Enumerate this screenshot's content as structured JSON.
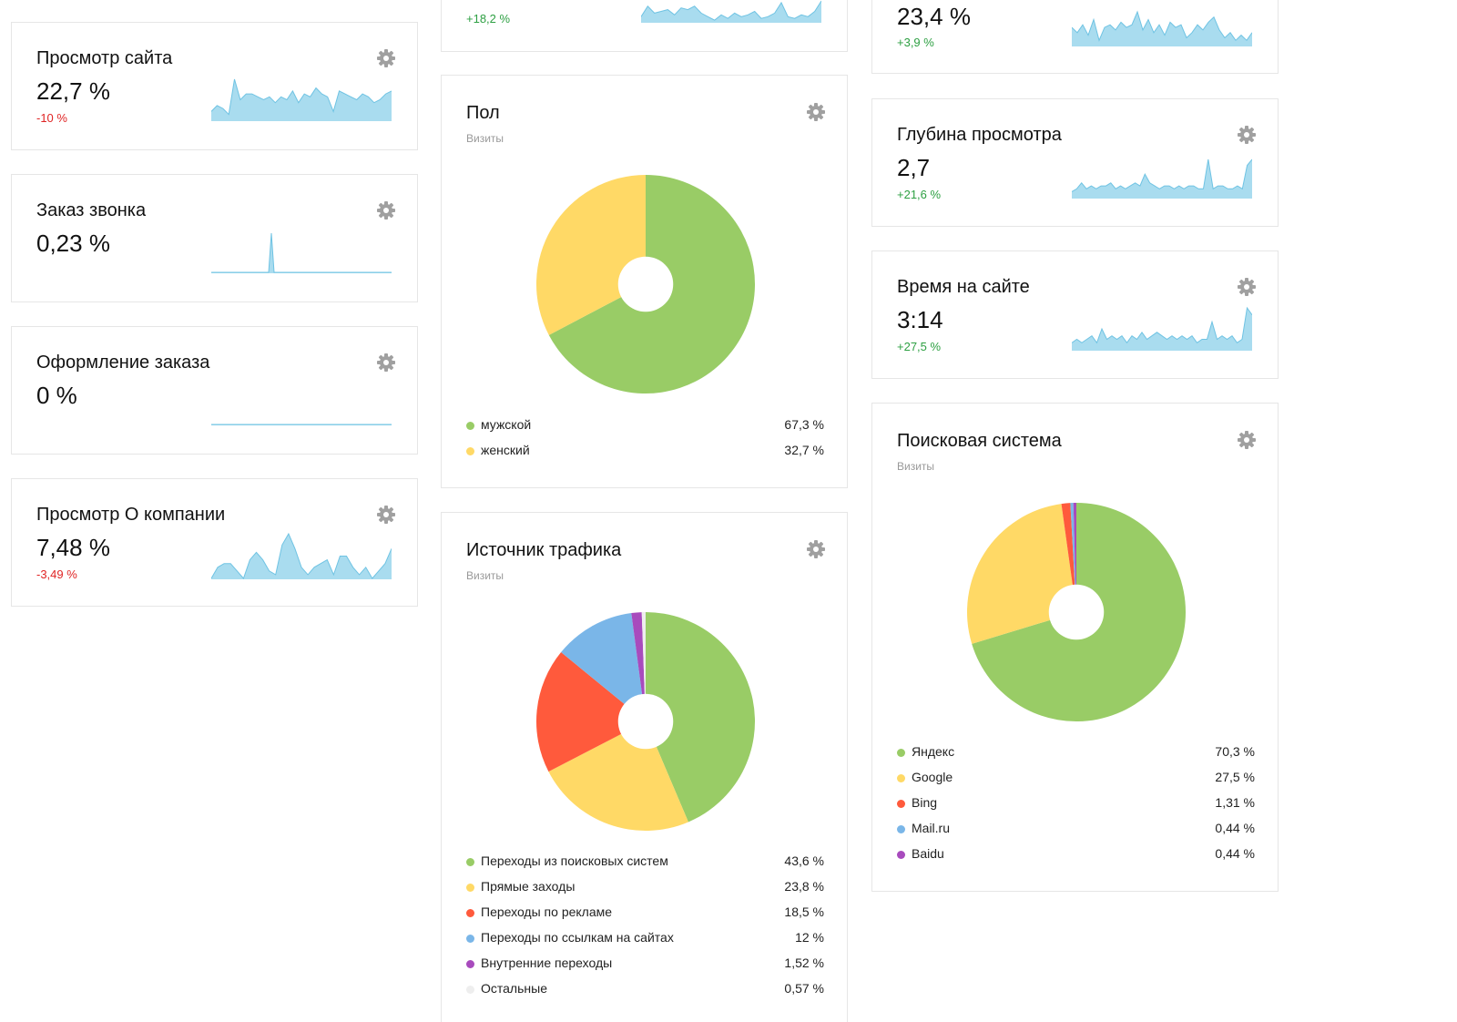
{
  "colors": {
    "spark_fill": "#a9dcef",
    "spark_line": "#6fc3e3",
    "positive": "#2ea043",
    "negative": "#e02424",
    "gear": "#a0a0a0",
    "green": "#99cc66",
    "yellow": "#ffd966",
    "red": "#ff5a3c",
    "blue": "#7ab6e8",
    "purple": "#a84bbd",
    "light": "#eeeeee"
  },
  "metrics": [
    {
      "id": "page-view",
      "title": "Просмотр сайта",
      "value": "22,7 %",
      "delta": "-10 %",
      "delta_sign": "neg",
      "spark": [
        3,
        5,
        4,
        2,
        14,
        7,
        9,
        9,
        8,
        7,
        8,
        6,
        8,
        7,
        10,
        6,
        9,
        8,
        11,
        9,
        8,
        3,
        10,
        9,
        8,
        7,
        9,
        8,
        6,
        7,
        9,
        10
      ]
    },
    {
      "id": "callback-order",
      "title": "Заказ звонка",
      "value": "0,23 %",
      "delta": "",
      "delta_sign": "",
      "spark": [
        0,
        0,
        0,
        0,
        0,
        0,
        0,
        0,
        0,
        0,
        0,
        0,
        0,
        0,
        0,
        0,
        0,
        0,
        0,
        0,
        0,
        0,
        14,
        0,
        0,
        0,
        0,
        0,
        0,
        0,
        0,
        0,
        0,
        0,
        0,
        0,
        0,
        0,
        0,
        0,
        0,
        0,
        0,
        0,
        0,
        0,
        0,
        0,
        0,
        0,
        0,
        0,
        0,
        0,
        0,
        0,
        0,
        0,
        0,
        0,
        0,
        0,
        0,
        0,
        0,
        0,
        0
      ]
    },
    {
      "id": "checkout",
      "title": "Оформление заказа",
      "value": "0 %",
      "delta": "",
      "delta_sign": "",
      "spark": [
        0,
        0,
        0,
        0,
        0,
        0,
        0,
        0,
        0,
        0,
        0,
        0,
        0,
        0,
        0,
        0,
        0,
        0,
        0,
        0
      ]
    },
    {
      "id": "about-view",
      "title": "Просмотр О компании",
      "value": "7,48 %",
      "delta": "-3,49 %",
      "delta_sign": "neg",
      "spark": [
        0,
        3,
        4,
        4,
        2,
        0,
        5,
        7,
        5,
        2,
        1,
        9,
        12,
        8,
        3,
        1,
        3,
        4,
        5,
        1,
        6,
        6,
        3,
        1,
        3,
        0,
        2,
        4,
        8
      ]
    },
    {
      "id": "top-center",
      "title": "",
      "value": "",
      "delta": "+18,2 %",
      "delta_sign": "pos",
      "spark": [
        3,
        9,
        5,
        6,
        7,
        4,
        8,
        7,
        9,
        5,
        3,
        1,
        4,
        2,
        5,
        3,
        4,
        6,
        2,
        3,
        5,
        11,
        3,
        2,
        4,
        3,
        6,
        12
      ]
    },
    {
      "id": "bounce",
      "title": "",
      "value": "23,4 %",
      "delta": "+3,9 %",
      "delta_sign": "pos",
      "spark": [
        7,
        5,
        8,
        4,
        10,
        2,
        7,
        8,
        6,
        9,
        7,
        8,
        13,
        6,
        10,
        5,
        8,
        4,
        9,
        7,
        8,
        3,
        5,
        8,
        6,
        9,
        11,
        6,
        3,
        5,
        2,
        4,
        2,
        5
      ]
    },
    {
      "id": "depth",
      "title": "Глубина просмотра",
      "value": "2,7",
      "delta": "+21,6 %",
      "delta_sign": "pos",
      "spark": [
        2,
        3,
        5,
        3,
        4,
        3,
        4,
        4,
        5,
        3,
        4,
        3,
        4,
        5,
        4,
        8,
        5,
        4,
        3,
        4,
        4,
        3,
        4,
        3,
        4,
        4,
        3,
        3,
        13,
        3,
        4,
        4,
        3,
        3,
        4,
        3,
        11,
        13
      ]
    },
    {
      "id": "time",
      "title": "Время на сайте",
      "value": "3:14",
      "delta": "+27,5 %",
      "delta_sign": "pos",
      "spark": [
        2,
        3,
        2,
        3,
        4,
        2,
        6,
        3,
        4,
        3,
        4,
        2,
        4,
        3,
        5,
        3,
        4,
        5,
        4,
        3,
        4,
        3,
        4,
        3,
        4,
        2,
        3,
        3,
        8,
        3,
        4,
        3,
        4,
        2,
        3,
        12,
        10
      ]
    }
  ],
  "gender": {
    "title": "Пол",
    "subtitle": "Визиты",
    "items": [
      {
        "label": "мужской",
        "value": "67,3 %",
        "share": 67.3,
        "color": "#99cc66"
      },
      {
        "label": "женский",
        "value": "32,7 %",
        "share": 32.7,
        "color": "#ffd966"
      }
    ]
  },
  "traffic": {
    "title": "Источник трафика",
    "subtitle": "Визиты",
    "items": [
      {
        "label": "Переходы из поисковых систем",
        "value": "43,6 %",
        "share": 43.6,
        "color": "#99cc66"
      },
      {
        "label": "Прямые заходы",
        "value": "23,8 %",
        "share": 23.8,
        "color": "#ffd966"
      },
      {
        "label": "Переходы по рекламе",
        "value": "18,5 %",
        "share": 18.5,
        "color": "#ff5a3c"
      },
      {
        "label": "Переходы по ссылкам на сайтах",
        "value": "12 %",
        "share": 12,
        "color": "#7ab6e8"
      },
      {
        "label": "Внутренние переходы",
        "value": "1,52 %",
        "share": 1.52,
        "color": "#a84bbd"
      },
      {
        "label": "Остальные",
        "value": "0,57 %",
        "share": 0.57,
        "color": "#eeeeee"
      }
    ]
  },
  "search": {
    "title": "Поисковая система",
    "subtitle": "Визиты",
    "items": [
      {
        "label": "Яндекс",
        "value": "70,3 %",
        "share": 70.3,
        "color": "#99cc66"
      },
      {
        "label": "Google",
        "value": "27,5 %",
        "share": 27.5,
        "color": "#ffd966"
      },
      {
        "label": "Bing",
        "value": "1,31 %",
        "share": 1.31,
        "color": "#ff5a3c"
      },
      {
        "label": "Mail.ru",
        "value": "0,44 %",
        "share": 0.44,
        "color": "#7ab6e8"
      },
      {
        "label": "Baidu",
        "value": "0,44 %",
        "share": 0.44,
        "color": "#a84bbd"
      }
    ]
  }
}
